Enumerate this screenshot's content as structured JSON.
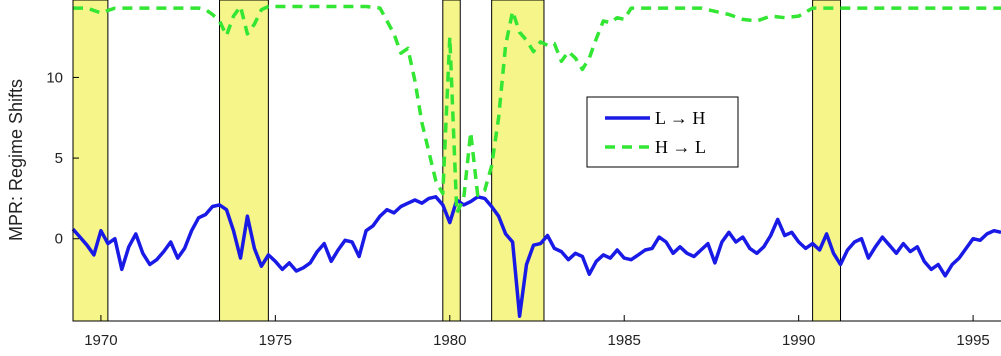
{
  "chart_data": {
    "type": "line",
    "title": "",
    "xlabel": "",
    "ylabel": "MPR: Regime Shifts",
    "xlim": [
      1969.2,
      1995.8
    ],
    "ylim": [
      -5.1,
      14.8
    ],
    "x_ticks": [
      1970,
      1975,
      1980,
      1985,
      1990,
      1995
    ],
    "x_tick_labels": [
      "1970",
      "1975",
      "1980",
      "1985",
      "1990",
      "1995"
    ],
    "y_ticks": [
      0,
      5,
      10
    ],
    "y_tick_labels": [
      "0",
      "5",
      "10"
    ],
    "grid": false,
    "legend_position": "center-right",
    "recession_bands": [
      {
        "start": 1969.2,
        "end": 1970.2
      },
      {
        "start": 1973.4,
        "end": 1974.8
      },
      {
        "start": 1979.8,
        "end": 1980.3
      },
      {
        "start": 1981.2,
        "end": 1982.7
      },
      {
        "start": 1990.4,
        "end": 1991.2
      }
    ],
    "recession_color": "#f5f58a",
    "series": [
      {
        "name": "L → H",
        "color": "#1a1ae6",
        "style": "solid",
        "x": [
          1969.2,
          1969.4,
          1969.6,
          1969.8,
          1970.0,
          1970.2,
          1970.4,
          1970.6,
          1970.8,
          1971.0,
          1971.2,
          1971.4,
          1971.6,
          1971.8,
          1972.0,
          1972.2,
          1972.4,
          1972.6,
          1972.8,
          1973.0,
          1973.2,
          1973.4,
          1973.6,
          1973.8,
          1974.0,
          1974.2,
          1974.4,
          1974.6,
          1974.8,
          1975.0,
          1975.2,
          1975.4,
          1975.6,
          1975.8,
          1976.0,
          1976.2,
          1976.4,
          1976.6,
          1976.8,
          1977.0,
          1977.2,
          1977.4,
          1977.6,
          1977.8,
          1978.0,
          1978.2,
          1978.4,
          1978.6,
          1978.8,
          1979.0,
          1979.2,
          1979.4,
          1979.6,
          1979.8,
          1980.0,
          1980.2,
          1980.4,
          1980.6,
          1980.8,
          1981.0,
          1981.2,
          1981.4,
          1981.6,
          1981.8,
          1982.0,
          1982.2,
          1982.4,
          1982.6,
          1982.8,
          1983.0,
          1983.2,
          1983.4,
          1983.6,
          1983.8,
          1984.0,
          1984.2,
          1984.4,
          1984.6,
          1984.8,
          1985.0,
          1985.2,
          1985.4,
          1985.6,
          1985.8,
          1986.0,
          1986.2,
          1986.4,
          1986.6,
          1986.8,
          1987.0,
          1987.2,
          1987.4,
          1987.6,
          1987.8,
          1988.0,
          1988.2,
          1988.4,
          1988.6,
          1988.8,
          1989.0,
          1989.2,
          1989.4,
          1989.6,
          1989.8,
          1990.0,
          1990.2,
          1990.4,
          1990.6,
          1990.8,
          1991.0,
          1991.2,
          1991.4,
          1991.6,
          1991.8,
          1992.0,
          1992.2,
          1992.4,
          1992.6,
          1992.8,
          1993.0,
          1993.2,
          1993.4,
          1993.6,
          1993.8,
          1994.0,
          1994.2,
          1994.4,
          1994.6,
          1994.8,
          1995.0,
          1995.2,
          1995.4,
          1995.6,
          1995.8
        ],
        "values": [
          0.6,
          0.1,
          -0.4,
          -1.0,
          0.5,
          -0.3,
          0.0,
          -1.9,
          -0.5,
          0.3,
          -0.9,
          -1.6,
          -1.3,
          -0.8,
          -0.2,
          -1.2,
          -0.6,
          0.5,
          1.3,
          1.5,
          2.0,
          2.1,
          1.8,
          0.5,
          -1.2,
          1.4,
          -0.6,
          -1.7,
          -1.0,
          -1.4,
          -1.9,
          -1.5,
          -2.0,
          -1.8,
          -1.5,
          -0.8,
          -0.3,
          -1.4,
          -0.7,
          -0.1,
          -0.2,
          -1.1,
          0.5,
          0.8,
          1.4,
          1.8,
          1.6,
          2.0,
          2.2,
          2.4,
          2.2,
          2.5,
          2.6,
          2.1,
          1.0,
          2.4,
          2.1,
          2.3,
          2.6,
          2.5,
          2.0,
          1.4,
          0.3,
          -0.2,
          -4.8,
          -1.6,
          -0.4,
          -0.3,
          0.2,
          -0.6,
          -0.8,
          -1.3,
          -0.9,
          -1.1,
          -2.2,
          -1.4,
          -1.0,
          -1.2,
          -0.7,
          -1.2,
          -1.3,
          -1.0,
          -0.7,
          -0.6,
          0.1,
          -0.2,
          -0.9,
          -0.5,
          -0.9,
          -1.1,
          -0.7,
          -0.3,
          -1.5,
          -0.2,
          0.4,
          -0.2,
          0.1,
          -0.6,
          -0.9,
          -0.5,
          0.2,
          1.2,
          0.2,
          0.4,
          -0.2,
          -0.6,
          -0.3,
          -0.7,
          0.3,
          -0.9,
          -1.6,
          -0.7,
          -0.2,
          0.0,
          -1.2,
          -0.5,
          0.1,
          -0.4,
          -0.9,
          -0.3,
          -0.8,
          -0.5,
          -1.4,
          -1.9,
          -1.6,
          -2.3,
          -1.6,
          -1.2,
          -0.6,
          0.0,
          -0.1,
          0.3,
          0.5,
          0.4
        ]
      },
      {
        "name": "H → L",
        "color": "#33e633",
        "style": "dashed",
        "x": [
          1969.2,
          1969.6,
          1970.0,
          1970.4,
          1970.8,
          1971.2,
          1971.6,
          1972.0,
          1972.4,
          1972.8,
          1973.0,
          1973.2,
          1973.4,
          1973.6,
          1973.8,
          1974.0,
          1974.2,
          1974.4,
          1974.6,
          1974.8,
          1975.2,
          1975.6,
          1976.0,
          1976.4,
          1976.8,
          1977.2,
          1977.6,
          1978.0,
          1978.2,
          1978.4,
          1978.6,
          1978.8,
          1979.0,
          1979.2,
          1979.4,
          1979.6,
          1979.8,
          1980.0,
          1980.2,
          1980.4,
          1980.6,
          1980.8,
          1981.0,
          1981.2,
          1981.4,
          1981.6,
          1981.8,
          1982.0,
          1982.2,
          1982.4,
          1982.6,
          1982.8,
          1983.0,
          1983.2,
          1983.4,
          1983.6,
          1983.8,
          1984.0,
          1984.2,
          1984.4,
          1984.6,
          1984.8,
          1985.0,
          1985.2,
          1985.4,
          1985.6,
          1985.8,
          1986.0,
          1986.4,
          1986.8,
          1987.2,
          1987.6,
          1988.0,
          1988.4,
          1988.8,
          1989.2,
          1989.6,
          1990.0,
          1990.4,
          1990.8,
          1991.2,
          1991.6,
          1992.0,
          1992.4,
          1992.8,
          1993.2,
          1993.6,
          1994.0,
          1994.4,
          1994.8,
          1995.2,
          1995.6,
          1995.8
        ],
        "values": [
          14.3,
          14.3,
          14.0,
          14.3,
          14.3,
          14.3,
          14.3,
          14.3,
          14.3,
          14.3,
          14.2,
          13.9,
          13.5,
          12.6,
          13.8,
          14.4,
          12.7,
          13.3,
          14.2,
          14.4,
          14.4,
          14.4,
          14.4,
          14.4,
          14.4,
          14.4,
          14.4,
          14.3,
          13.5,
          12.7,
          11.5,
          11.8,
          9.8,
          7.2,
          5.4,
          3.6,
          2.8,
          12.5,
          1.6,
          2.5,
          6.6,
          2.7,
          3.0,
          4.5,
          7.5,
          12.0,
          14.1,
          12.8,
          12.3,
          11.6,
          12.2,
          12.0,
          12.1,
          11.0,
          11.6,
          11.2,
          10.5,
          11.2,
          12.4,
          13.5,
          13.4,
          13.7,
          13.6,
          14.3,
          14.3,
          14.3,
          14.3,
          14.3,
          14.3,
          14.3,
          14.3,
          14.1,
          13.9,
          13.6,
          13.5,
          13.8,
          13.7,
          13.8,
          14.3,
          14.3,
          14.3,
          14.3,
          14.3,
          14.3,
          14.3,
          14.3,
          14.3,
          14.3,
          14.3,
          14.3,
          14.3,
          14.3,
          14.3
        ]
      }
    ]
  }
}
